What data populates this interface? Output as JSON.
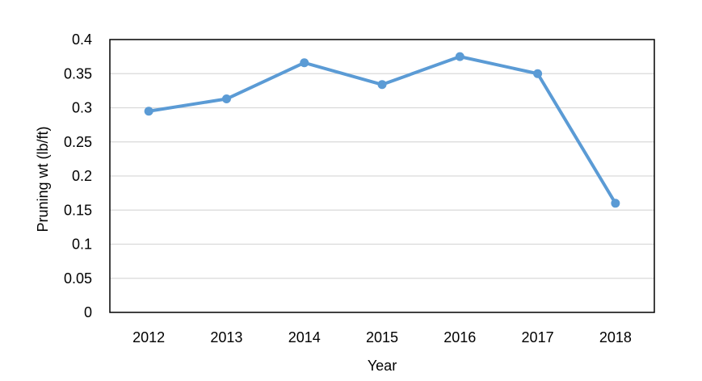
{
  "chart_data": {
    "type": "line",
    "title": "",
    "xlabel": "Year",
    "ylabel": "Pruning wt (lb/ft)",
    "categories": [
      "2012",
      "2013",
      "2014",
      "2015",
      "2016",
      "2017",
      "2018"
    ],
    "series": [
      {
        "values": [
          0.295,
          0.313,
          0.366,
          0.334,
          0.375,
          0.35,
          0.16
        ],
        "color": "#5b9bd5"
      }
    ],
    "ylim": [
      0,
      0.4
    ],
    "yticks": [
      "0",
      "0.05",
      "0.1",
      "0.15",
      "0.2",
      "0.25",
      "0.3",
      "0.35",
      "0.4"
    ],
    "grid": true,
    "legend": "none"
  }
}
